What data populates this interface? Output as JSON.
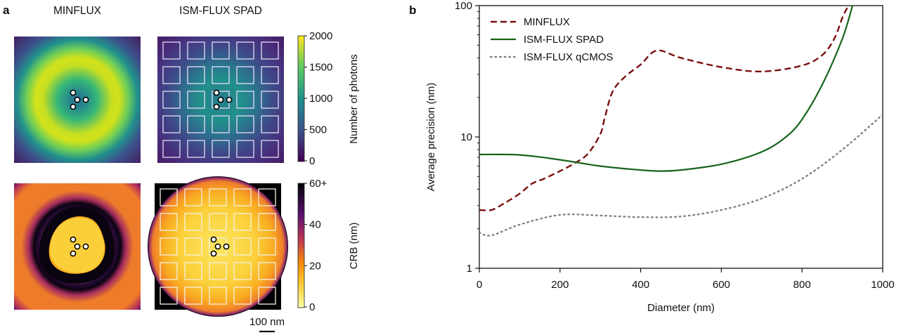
{
  "figure": {
    "panel_a_label": "a",
    "panel_b_label": "b",
    "columns": [
      "MINFLUX",
      "ISM-FLUX SPAD"
    ],
    "scalebar_label": "100 nm",
    "colormap_photons": {
      "label": "Number of photons",
      "ticks": [
        "0",
        "500",
        "1000",
        "1500",
        "2000"
      ],
      "range": [
        0,
        2000
      ],
      "colors": [
        "#440154",
        "#3b528b",
        "#21918c",
        "#5ec962",
        "#fde725"
      ]
    },
    "colormap_crb": {
      "label": "CRB (nm)",
      "ticks": [
        "0",
        "20",
        "40",
        "60+"
      ],
      "range": [
        0,
        60
      ],
      "colors": [
        "#fcffa4",
        "#f98e09",
        "#bc3754",
        "#57106e",
        "#000004"
      ]
    },
    "detector_grid": "5x5",
    "emitters_per_panel": 4
  },
  "chart_data": [
    {
      "type": "heatmap",
      "title": "MINFLUX",
      "quantity": "Number of photons",
      "pattern": "donut ring, max ~2000 at ring, minimum at center",
      "colormap": "viridis"
    },
    {
      "type": "heatmap",
      "title": "ISM-FLUX SPAD",
      "quantity": "Number of photons",
      "pattern": "broad central spot (~1000 peak) with 5x5 detector grid overlay",
      "colormap": "viridis"
    },
    {
      "type": "heatmap",
      "title": "MINFLUX",
      "quantity": "CRB (nm)",
      "pattern": "low CRB triangular center, dark band ring, orange outer ring",
      "colormap": "inferno_r"
    },
    {
      "type": "heatmap",
      "title": "ISM-FLUX SPAD",
      "quantity": "CRB (nm)",
      "pattern": "low CRB disk covering most of field, 5x5 detector grid overlay",
      "colormap": "inferno_r"
    },
    {
      "type": "line",
      "title": "",
      "xlabel": "Diameter (nm)",
      "ylabel": "Average precision (nm)",
      "xlim": [
        0,
        1000
      ],
      "ylim": [
        1,
        100
      ],
      "yscale": "log",
      "xticks": [
        "0",
        "200",
        "400",
        "600",
        "800",
        "1000"
      ],
      "yticks": [
        "1",
        "10",
        "100"
      ],
      "legend_position": "top-left",
      "grid": false,
      "series": [
        {
          "name": "MINFLUX",
          "style": "dashed",
          "color": "#7b0f0f",
          "x": [
            0,
            30,
            60,
            100,
            130,
            160,
            200,
            240,
            270,
            300,
            310,
            330,
            360,
            400,
            440,
            500,
            600,
            700,
            800,
            850,
            880,
            900,
            915
          ],
          "y": [
            2.78,
            2.78,
            3.1,
            3.7,
            4.4,
            4.8,
            5.5,
            6.4,
            7.5,
            10.5,
            13.6,
            22,
            28.5,
            35.6,
            45.5,
            40,
            34,
            31.5,
            35,
            42,
            56,
            81,
            100
          ]
        },
        {
          "name": "ISM-FLUX SPAD",
          "style": "solid",
          "color": "#16641a",
          "x": [
            0,
            100,
            200,
            300,
            400,
            450,
            500,
            600,
            700,
            760,
            800,
            850,
            900,
            925
          ],
          "y": [
            7.35,
            7.3,
            6.7,
            6.0,
            5.6,
            5.5,
            5.6,
            6.2,
            7.7,
            10,
            13.6,
            25,
            56,
            100
          ]
        },
        {
          "name": "ISM-FLUX qCMOS",
          "style": "dotted",
          "color": "#808080",
          "x": [
            0,
            30,
            100,
            200,
            300,
            400,
            500,
            600,
            700,
            800,
            900,
            1000
          ],
          "y": [
            1.87,
            1.78,
            2.15,
            2.55,
            2.52,
            2.45,
            2.48,
            2.78,
            3.4,
            4.8,
            8.0,
            14.8
          ]
        }
      ]
    }
  ]
}
